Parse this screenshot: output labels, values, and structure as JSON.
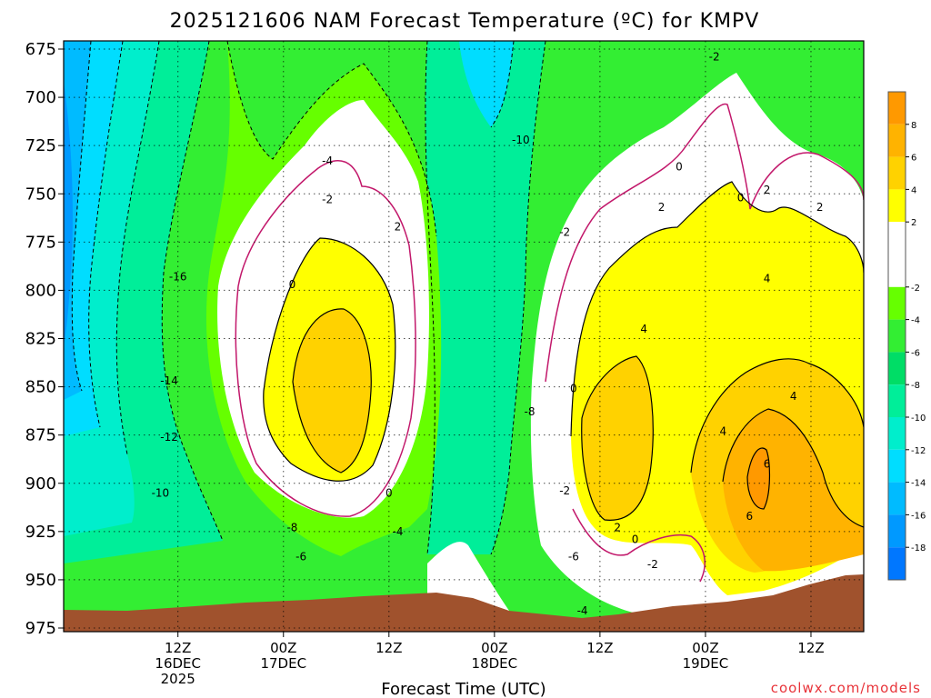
{
  "chart_data": {
    "type": "contour",
    "title": "2025121606 NAM Forecast Temperature (ºC) for KMPV",
    "xlabel": "Forecast Time (UTC)",
    "credit": "coolwx.com/models",
    "y_axis": {
      "label": "",
      "ticks": [
        "675",
        "700",
        "725",
        "750",
        "775",
        "800",
        "825",
        "850",
        "875",
        "900",
        "925",
        "950",
        "975"
      ],
      "range": [
        675,
        975
      ],
      "inverted": true
    },
    "x_axis": {
      "range_hours": [
        -7,
        84
      ],
      "ticks": [
        {
          "hour": 6,
          "lines": [
            "12Z",
            "16DEC",
            "2025"
          ]
        },
        {
          "hour": 18,
          "lines": [
            "00Z",
            "17DEC"
          ]
        },
        {
          "hour": 30,
          "lines": [
            "12Z"
          ]
        },
        {
          "hour": 42,
          "lines": [
            "00Z",
            "18DEC"
          ]
        },
        {
          "hour": 54,
          "lines": [
            "12Z"
          ]
        },
        {
          "hour": 66,
          "lines": [
            "00Z",
            "19DEC"
          ]
        },
        {
          "hour": 78,
          "lines": [
            "12Z"
          ]
        }
      ]
    },
    "colorbar": {
      "ticks": [
        "8",
        "6",
        "4",
        "2",
        "-2",
        "-4",
        "-6",
        "-8",
        "-10",
        "-12",
        "-14",
        "-16",
        "-18"
      ],
      "bins": [
        {
          "from": 8,
          "to": 10,
          "color": "#ff9900"
        },
        {
          "from": 6,
          "to": 8,
          "color": "#ffb300"
        },
        {
          "from": 4,
          "to": 6,
          "color": "#ffd200"
        },
        {
          "from": 2,
          "to": 4,
          "color": "#ffff00"
        },
        {
          "from": 0,
          "to": 2,
          "color": "#ffffff"
        },
        {
          "from": -2,
          "to": 0,
          "color": "#ffffff"
        },
        {
          "from": -4,
          "to": -2,
          "color": "#66ff00"
        },
        {
          "from": -6,
          "to": -4,
          "color": "#33ee33"
        },
        {
          "from": -8,
          "to": -6,
          "color": "#00dd66"
        },
        {
          "from": -10,
          "to": -8,
          "color": "#00ee99"
        },
        {
          "from": -12,
          "to": -10,
          "color": "#00eecc"
        },
        {
          "from": -14,
          "to": -12,
          "color": "#00ddff"
        },
        {
          "from": -16,
          "to": -14,
          "color": "#00bbff"
        },
        {
          "from": -18,
          "to": -16,
          "color": "#0099ff"
        },
        {
          "from": -20,
          "to": -18,
          "color": "#0077ff"
        }
      ]
    },
    "contour_labels": [
      {
        "t": 6,
        "p": 793,
        "text": "-16"
      },
      {
        "t": 5,
        "p": 847,
        "text": "-14"
      },
      {
        "t": 5,
        "p": 876,
        "text": "-12"
      },
      {
        "t": 4,
        "p": 905,
        "text": "-10"
      },
      {
        "t": 19,
        "p": 923,
        "text": "-8"
      },
      {
        "t": 20,
        "p": 938,
        "text": "-6"
      },
      {
        "t": 23,
        "p": 733,
        "text": "-4"
      },
      {
        "t": 23,
        "p": 753,
        "text": "-2"
      },
      {
        "t": 19,
        "p": 797,
        "text": "0"
      },
      {
        "t": 31,
        "p": 767,
        "text": "2"
      },
      {
        "t": 30,
        "p": 905,
        "text": "0"
      },
      {
        "t": 31,
        "p": 925,
        "text": "-4"
      },
      {
        "t": 45,
        "p": 722,
        "text": "-10"
      },
      {
        "t": 50,
        "p": 770,
        "text": "-2"
      },
      {
        "t": 46,
        "p": 863,
        "text": "-8"
      },
      {
        "t": 50,
        "p": 904,
        "text": "-2"
      },
      {
        "t": 51,
        "p": 938,
        "text": "-6"
      },
      {
        "t": 52,
        "p": 966,
        "text": "-4"
      },
      {
        "t": 51,
        "p": 851,
        "text": "0"
      },
      {
        "t": 56,
        "p": 923,
        "text": "2"
      },
      {
        "t": 58,
        "p": 929,
        "text": "0"
      },
      {
        "t": 60,
        "p": 942,
        "text": "-2"
      },
      {
        "t": 59,
        "p": 820,
        "text": "4"
      },
      {
        "t": 61,
        "p": 757,
        "text": "2"
      },
      {
        "t": 63,
        "p": 736,
        "text": "0"
      },
      {
        "t": 67,
        "p": 679,
        "text": "-2"
      },
      {
        "t": 68,
        "p": 873,
        "text": "4"
      },
      {
        "t": 70,
        "p": 752,
        "text": "0"
      },
      {
        "t": 73,
        "p": 748,
        "text": "2"
      },
      {
        "t": 73,
        "p": 794,
        "text": "4"
      },
      {
        "t": 73,
        "p": 890,
        "text": "6"
      },
      {
        "t": 71,
        "p": 917,
        "text": "6"
      },
      {
        "t": 76,
        "p": 855,
        "text": "4"
      },
      {
        "t": 79,
        "p": 757,
        "text": "2"
      }
    ]
  }
}
